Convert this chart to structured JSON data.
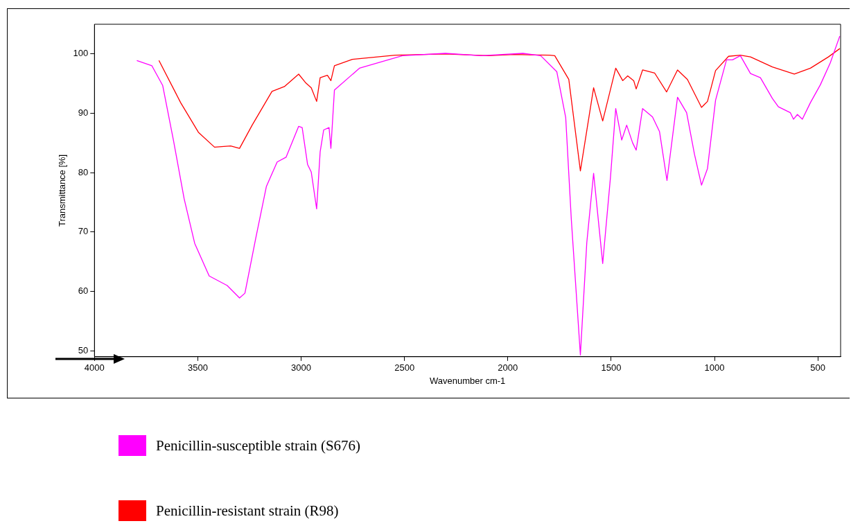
{
  "chart_data": {
    "type": "line",
    "xlabel": "Wavenumber cm-1",
    "ylabel": "Transmittance [%]",
    "xlim": [
      4000,
      390
    ],
    "xticks": [
      4000,
      3500,
      3000,
      2500,
      2000,
      1500,
      1000,
      500
    ],
    "ylim": [
      49,
      105
    ],
    "yticks": [
      50,
      60,
      70,
      80,
      90,
      100
    ],
    "grid": false,
    "legend": "bottom",
    "marker": "none",
    "line_style": "solid",
    "series": [
      {
        "name": "Penicillin-susceptible strain (S676)",
        "color": "#ff00ff",
        "x": [
          3795,
          3722,
          3670,
          3618,
          3566,
          3515,
          3445,
          3358,
          3298,
          3272,
          3220,
          3168,
          3116,
          3073,
          3012,
          2995,
          2969,
          2951,
          2925,
          2908,
          2891,
          2865,
          2856,
          2839,
          2718,
          2510,
          2302,
          2128,
          1927,
          1841,
          1763,
          1720,
          1693,
          1649,
          1618,
          1585,
          1541,
          1503,
          1478,
          1449,
          1425,
          1396,
          1379,
          1348,
          1300,
          1266,
          1230,
          1179,
          1135,
          1097,
          1063,
          1034,
          995,
          942,
          913,
          875,
          826,
          778,
          720,
          691,
          633,
          618,
          599,
          575,
          536,
          488,
          440,
          394
        ],
        "values": [
          98.9,
          98.0,
          94.7,
          85.5,
          75.6,
          68.1,
          62.6,
          61.0,
          58.9,
          59.7,
          68.9,
          77.7,
          81.8,
          82.6,
          87.8,
          87.6,
          81.4,
          80.1,
          73.9,
          83.5,
          87.2,
          87.6,
          84.1,
          93.9,
          97.6,
          99.7,
          100.1,
          99.7,
          100.1,
          99.7,
          97.0,
          89.3,
          72.2,
          49.3,
          68.2,
          79.9,
          64.7,
          79.4,
          90.8,
          85.5,
          88.0,
          85.0,
          83.8,
          90.8,
          89.4,
          86.9,
          78.7,
          92.7,
          90.1,
          83.1,
          77.9,
          80.7,
          92.2,
          99.0,
          99.0,
          99.7,
          96.7,
          96.0,
          92.5,
          91.1,
          90.1,
          89.0,
          89.8,
          89.0,
          91.8,
          94.8,
          98.5,
          103.0
        ]
      },
      {
        "name": "Penicillin-resistant strain (R98)",
        "color": "#ff0000",
        "x": [
          3688,
          3583,
          3497,
          3419,
          3341,
          3298,
          3237,
          3141,
          3081,
          3012,
          2977,
          2951,
          2925,
          2908,
          2873,
          2856,
          2839,
          2752,
          2545,
          2302,
          2094,
          1970,
          1797,
          1773,
          1705,
          1649,
          1585,
          1541,
          1478,
          1444,
          1420,
          1391,
          1379,
          1348,
          1290,
          1232,
          1179,
          1131,
          1063,
          1034,
          995,
          932,
          875,
          826,
          720,
          614,
          536,
          449,
          394
        ],
        "values": [
          98.9,
          91.8,
          86.8,
          84.3,
          84.5,
          84.1,
          88.0,
          93.7,
          94.5,
          96.6,
          95.1,
          94.3,
          92.0,
          96.0,
          96.4,
          95.5,
          98.0,
          99.1,
          99.8,
          100.0,
          99.7,
          99.9,
          99.8,
          99.7,
          95.7,
          80.3,
          94.3,
          88.7,
          97.6,
          95.5,
          96.3,
          95.5,
          94.1,
          97.3,
          96.8,
          93.6,
          97.3,
          95.7,
          91.0,
          92.0,
          97.2,
          99.6,
          99.8,
          99.5,
          97.8,
          96.6,
          97.6,
          99.5,
          100.9
        ]
      }
    ]
  }
}
